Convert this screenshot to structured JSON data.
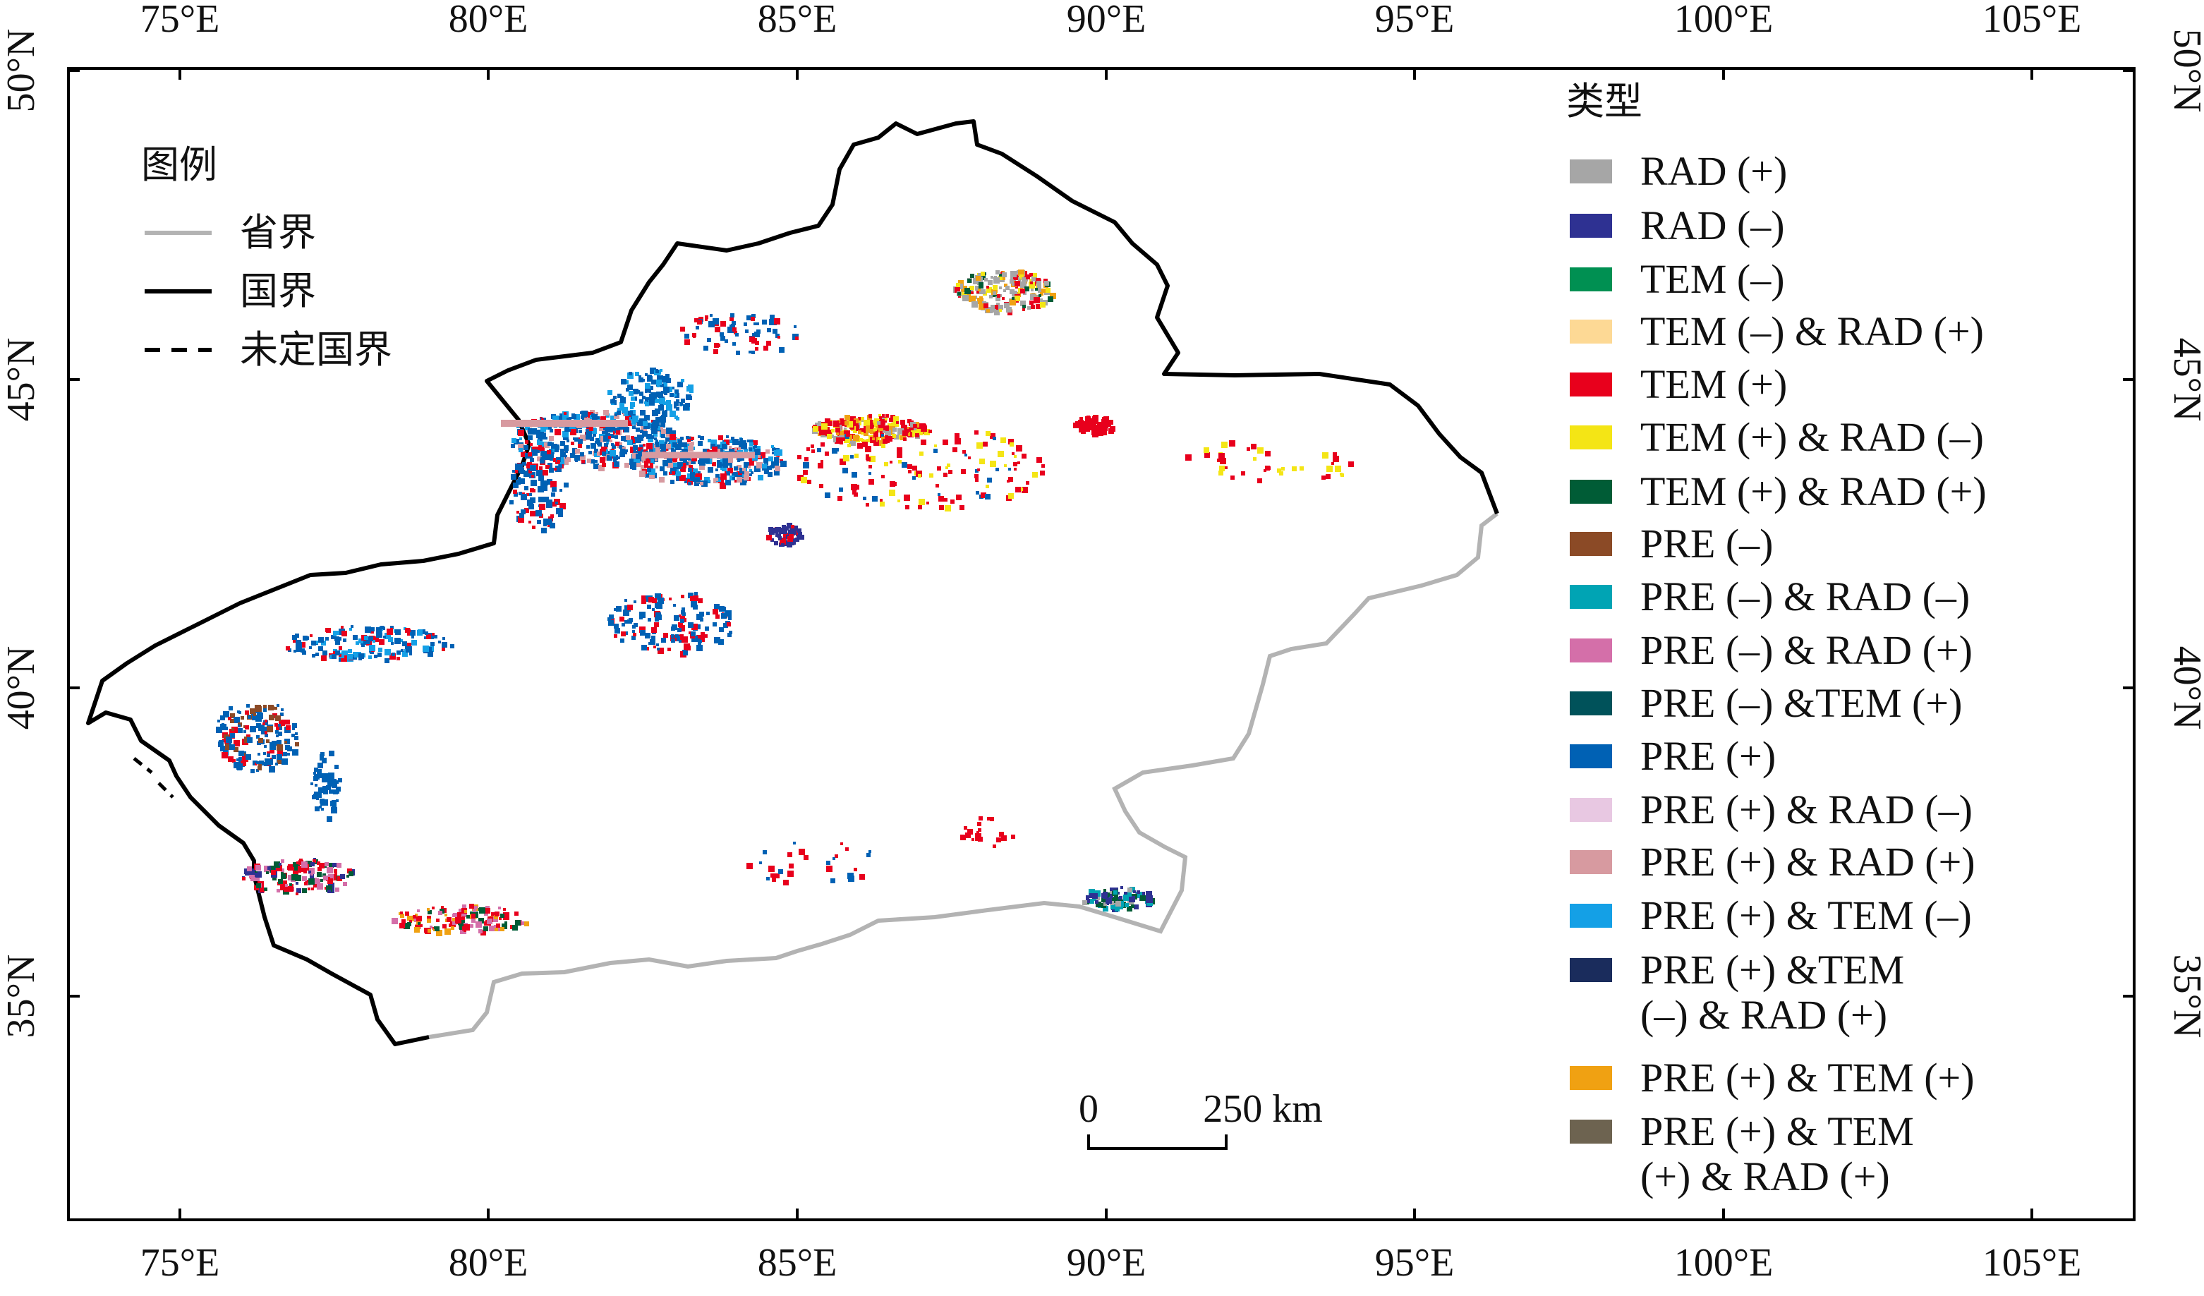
{
  "figure": {
    "colors": {
      "national_border": "#000000",
      "provincial_border": "#b3b3b3",
      "frame": "#000000",
      "region_fill": "#ffffff"
    }
  },
  "axes": {
    "top_labels": [
      "75°E",
      "80°E",
      "85°E",
      "90°E",
      "95°E",
      "100°E",
      "105°E"
    ],
    "bottom_labels": [
      "75°E",
      "80°E",
      "85°E",
      "90°E",
      "95°E",
      "100°E",
      "105°E"
    ],
    "left_labels": [
      "50°N",
      "45°N",
      "40°N",
      "35°N"
    ],
    "right_labels": [
      "50°N",
      "45°N",
      "40°N",
      "35°N"
    ]
  },
  "boundary_key": {
    "title": "图例",
    "items": [
      {
        "label": "省界",
        "style": "provincial"
      },
      {
        "label": "国界",
        "style": "national"
      },
      {
        "label": "未定国界",
        "style": "undetermined"
      }
    ]
  },
  "type_legend": {
    "title": "类型",
    "items": [
      {
        "label": "RAD (+)",
        "color": "#a6a6a6"
      },
      {
        "label": "RAD (–)",
        "color": "#2e3192"
      },
      {
        "label": "TEM (–)",
        "color": "#009052"
      },
      {
        "label": "TEM (–) & RAD (+)",
        "color": "#fdd995"
      },
      {
        "label": "TEM (+)",
        "color": "#e8001c"
      },
      {
        "label": "TEM (+) & RAD (–)",
        "color": "#f4e515"
      },
      {
        "label": "TEM (+) & RAD (+)",
        "color": "#005c36"
      },
      {
        "label": "PRE (–)",
        "color": "#8b4a26"
      },
      {
        "label": "PRE (–) & RAD (–)",
        "color": "#00a4b4"
      },
      {
        "label": "PRE (–) & RAD (+)",
        "color": "#d46fa9"
      },
      {
        "label": "PRE (–) &TEM (+)",
        "color": "#00525a"
      },
      {
        "label": "PRE (+)",
        "color": "#0061b4"
      },
      {
        "label": "PRE (+) & RAD (–)",
        "color": "#e8c8e2"
      },
      {
        "label": "PRE (+) & RAD (+)",
        "color": "#d79aa0"
      },
      {
        "label": "PRE (+) & TEM (–)",
        "color": "#14a0e6"
      },
      {
        "label": "PRE (+) &TEM",
        "label2": "(–) & RAD (+)",
        "color": "#1a2c5c"
      },
      {
        "label": "PRE (+) & TEM (+)",
        "color": "#f0a112"
      },
      {
        "label": "PRE (+) & TEM",
        "label2": "(+) & RAD (+)",
        "color": "#6d6350"
      }
    ]
  },
  "scale_bar": {
    "zero_label": "0",
    "end_label": "250 km"
  }
}
